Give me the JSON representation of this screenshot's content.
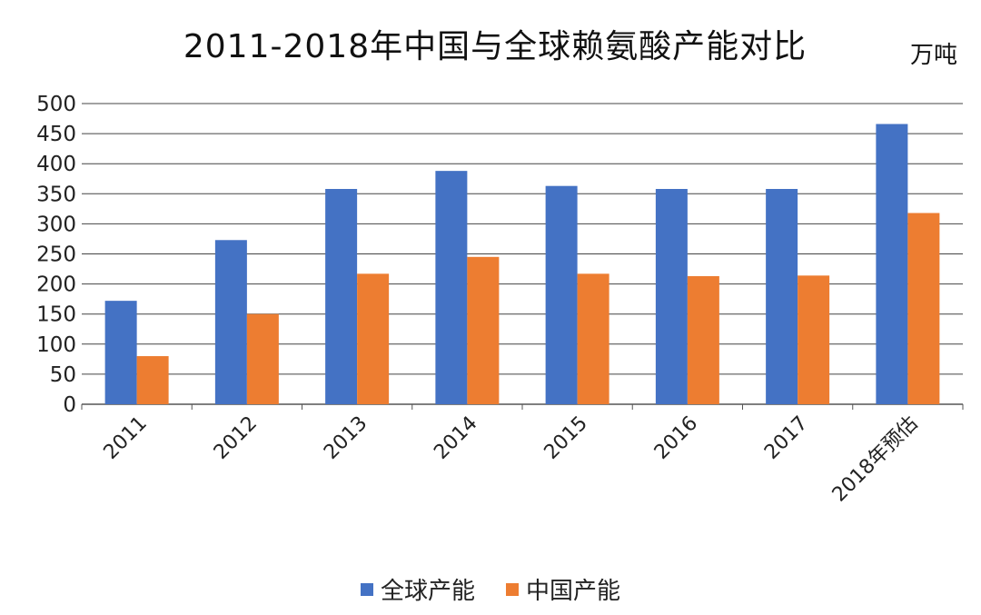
{
  "chart_data": {
    "type": "bar",
    "title": "2011-2018年中国与全球赖氨酸产能对比",
    "unit": "万吨",
    "categories": [
      "2011",
      "2012",
      "2013",
      "2014",
      "2015",
      "2016",
      "2017",
      "2018年预估"
    ],
    "series": [
      {
        "name": "全球产能",
        "color": "#4472C4",
        "values": [
          172,
          273,
          358,
          388,
          363,
          358,
          358,
          466
        ]
      },
      {
        "name": "中国产能",
        "color": "#ED7D31",
        "values": [
          80,
          150,
          217,
          245,
          217,
          213,
          214,
          318
        ]
      }
    ],
    "ylim": [
      0,
      500
    ],
    "yticks": [
      0,
      50,
      100,
      150,
      200,
      250,
      300,
      350,
      400,
      450,
      500
    ],
    "grid": true,
    "legend_position": "bottom"
  }
}
